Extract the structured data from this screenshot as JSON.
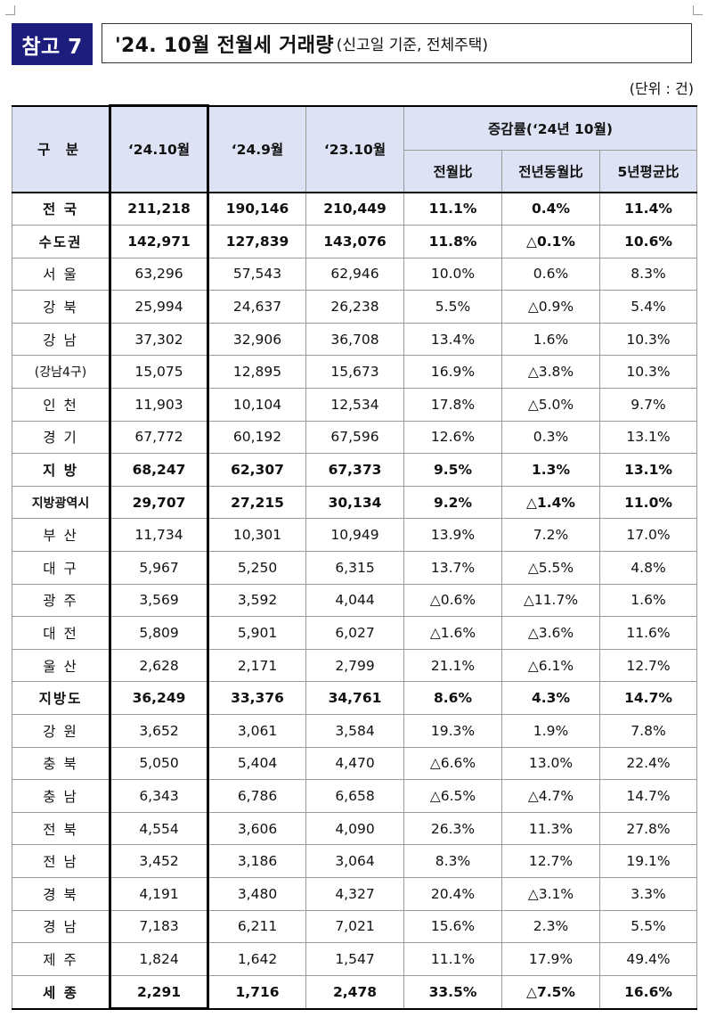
{
  "header": {
    "badge": "참고 7",
    "title_main": "'24. 10월 전월세 거래량",
    "title_sub": "(신고일 기준, 전체주택)",
    "unit": "(단위 : 건)"
  },
  "table": {
    "col_header": {
      "region": "구 분",
      "cur": "‘24.10월",
      "prev_month": "‘24.9월",
      "prev_year": "‘23.10월",
      "change_group": "증감률(‘24년 10월)",
      "mom": "전월比",
      "yoy": "전년동월比",
      "avg5y": "5년평균比"
    },
    "rows": [
      {
        "name": "전 국",
        "cur": "211,218",
        "pm": "190,146",
        "py": "210,449",
        "mom": "11.1%",
        "yoy": "0.4%",
        "avg": "11.4%"
      },
      {
        "name": "수도권",
        "cur": "142,971",
        "pm": "127,839",
        "py": "143,076",
        "mom": "11.8%",
        "yoy": "△0.1%",
        "avg": "10.6%"
      },
      {
        "name": "서 울",
        "cur": "63,296",
        "pm": "57,543",
        "py": "62,946",
        "mom": "10.0%",
        "yoy": "0.6%",
        "avg": "8.3%"
      },
      {
        "name": "강 북",
        "cur": "25,994",
        "pm": "24,637",
        "py": "26,238",
        "mom": "5.5%",
        "yoy": "△0.9%",
        "avg": "5.4%"
      },
      {
        "name": "강 남",
        "cur": "37,302",
        "pm": "32,906",
        "py": "36,708",
        "mom": "13.4%",
        "yoy": "1.6%",
        "avg": "10.3%"
      },
      {
        "name": "(강남4구)",
        "cur": "15,075",
        "pm": "12,895",
        "py": "15,673",
        "mom": "16.9%",
        "yoy": "△3.8%",
        "avg": "10.3%"
      },
      {
        "name": "인 천",
        "cur": "11,903",
        "pm": "10,104",
        "py": "12,534",
        "mom": "17.8%",
        "yoy": "△5.0%",
        "avg": "9.7%"
      },
      {
        "name": "경 기",
        "cur": "67,772",
        "pm": "60,192",
        "py": "67,596",
        "mom": "12.6%",
        "yoy": "0.3%",
        "avg": "13.1%"
      },
      {
        "name": "지 방",
        "cur": "68,247",
        "pm": "62,307",
        "py": "67,373",
        "mom": "9.5%",
        "yoy": "1.3%",
        "avg": "13.1%"
      },
      {
        "name": "지방광역시",
        "cur": "29,707",
        "pm": "27,215",
        "py": "30,134",
        "mom": "9.2%",
        "yoy": "△1.4%",
        "avg": "11.0%"
      },
      {
        "name": "부 산",
        "cur": "11,734",
        "pm": "10,301",
        "py": "10,949",
        "mom": "13.9%",
        "yoy": "7.2%",
        "avg": "17.0%"
      },
      {
        "name": "대 구",
        "cur": "5,967",
        "pm": "5,250",
        "py": "6,315",
        "mom": "13.7%",
        "yoy": "△5.5%",
        "avg": "4.8%"
      },
      {
        "name": "광 주",
        "cur": "3,569",
        "pm": "3,592",
        "py": "4,044",
        "mom": "△0.6%",
        "yoy": "△11.7%",
        "avg": "1.6%"
      },
      {
        "name": "대 전",
        "cur": "5,809",
        "pm": "5,901",
        "py": "6,027",
        "mom": "△1.6%",
        "yoy": "△3.6%",
        "avg": "11.6%"
      },
      {
        "name": "울 산",
        "cur": "2,628",
        "pm": "2,171",
        "py": "2,799",
        "mom": "21.1%",
        "yoy": "△6.1%",
        "avg": "12.7%"
      },
      {
        "name": "지방도",
        "cur": "36,249",
        "pm": "33,376",
        "py": "34,761",
        "mom": "8.6%",
        "yoy": "4.3%",
        "avg": "14.7%"
      },
      {
        "name": "강 원",
        "cur": "3,652",
        "pm": "3,061",
        "py": "3,584",
        "mom": "19.3%",
        "yoy": "1.9%",
        "avg": "7.8%"
      },
      {
        "name": "충 북",
        "cur": "5,050",
        "pm": "5,404",
        "py": "4,470",
        "mom": "△6.6%",
        "yoy": "13.0%",
        "avg": "22.4%"
      },
      {
        "name": "충 남",
        "cur": "6,343",
        "pm": "6,786",
        "py": "6,658",
        "mom": "△6.5%",
        "yoy": "△4.7%",
        "avg": "14.7%"
      },
      {
        "name": "전 북",
        "cur": "4,554",
        "pm": "3,606",
        "py": "4,090",
        "mom": "26.3%",
        "yoy": "11.3%",
        "avg": "27.8%"
      },
      {
        "name": "전 남",
        "cur": "3,452",
        "pm": "3,186",
        "py": "3,064",
        "mom": "8.3%",
        "yoy": "12.7%",
        "avg": "19.1%"
      },
      {
        "name": "경 북",
        "cur": "4,191",
        "pm": "3,480",
        "py": "4,327",
        "mom": "20.4%",
        "yoy": "△3.1%",
        "avg": "3.3%"
      },
      {
        "name": "경 남",
        "cur": "7,183",
        "pm": "6,211",
        "py": "7,021",
        "mom": "15.6%",
        "yoy": "2.3%",
        "avg": "5.5%"
      },
      {
        "name": "제 주",
        "cur": "1,824",
        "pm": "1,642",
        "py": "1,547",
        "mom": "11.1%",
        "yoy": "17.9%",
        "avg": "49.4%"
      },
      {
        "name": "세 종",
        "cur": "2,291",
        "pm": "1,716",
        "py": "2,478",
        "mom": "33.5%",
        "yoy": "△7.5%",
        "avg": "16.6%"
      }
    ]
  }
}
